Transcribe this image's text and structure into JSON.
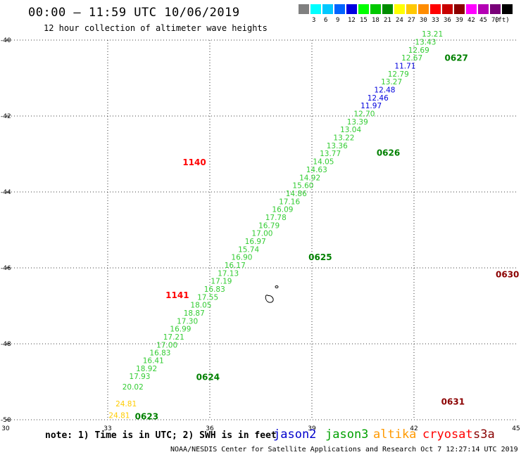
{
  "header": {
    "title": "00:00 – 11:59 UTC 10/06/2019",
    "subtitle": "12 hour collection of altimeter wave heights"
  },
  "colorbar": {
    "unit_label": "(ft)",
    "cells": [
      {
        "color": "#808080",
        "label": ""
      },
      {
        "color": "#00ffff",
        "label": "3"
      },
      {
        "color": "#00c8ff",
        "label": "6"
      },
      {
        "color": "#0064ff",
        "label": "9"
      },
      {
        "color": "#0000e0",
        "label": "12"
      },
      {
        "color": "#00ff00",
        "label": "15"
      },
      {
        "color": "#00c800",
        "label": "18"
      },
      {
        "color": "#008c00",
        "label": "21"
      },
      {
        "color": "#ffff00",
        "label": "24"
      },
      {
        "color": "#ffc800",
        "label": "27"
      },
      {
        "color": "#ff8c00",
        "label": "30"
      },
      {
        "color": "#ff0000",
        "label": "33"
      },
      {
        "color": "#c80000",
        "label": "36"
      },
      {
        "color": "#8c0000",
        "label": "39"
      },
      {
        "color": "#ff00ff",
        "label": "42"
      },
      {
        "color": "#b400b4",
        "label": "45"
      },
      {
        "color": "#780078",
        "label": "70"
      },
      {
        "color": "#000000",
        "label": ""
      }
    ]
  },
  "footer": {
    "note": "note: 1) Time is in UTC; 2) SWH is in feet",
    "legend": [
      {
        "name": "jason2",
        "color": "#0000cc"
      },
      {
        "name": "jason3",
        "color": "#00a000"
      },
      {
        "name": "altika",
        "color": "#ff9900"
      },
      {
        "name": "cryosat",
        "color": "#ff0000"
      },
      {
        "name": "s3a",
        "color": "#880000"
      }
    ],
    "credit": "NOAA/NESDIS Center for Satellite Applications and Research   Oct  7 12:27:14 UTC 2019"
  },
  "chart_data": {
    "type": "scatter",
    "title": "00:00 – 11:59 UTC 10/06/2019",
    "subtitle": "12 hour collection of altimeter wave heights",
    "xlabel": "",
    "ylabel": "",
    "xlim": [
      30,
      45
    ],
    "ylim": [
      -50,
      -40
    ],
    "x_ticks": [
      "30",
      "33",
      "36",
      "39",
      "42",
      "45"
    ],
    "y_ticks": [
      "-40",
      "-42",
      "-44",
      "-46",
      "-48",
      "-50"
    ],
    "grid": "dotted",
    "time_labels": [
      {
        "text": "0627",
        "x": 42.9,
        "y": -40.55,
        "color": "#008000"
      },
      {
        "text": "0626",
        "x": 40.9,
        "y": -43.05,
        "color": "#008000"
      },
      {
        "text": "0625",
        "x": 38.9,
        "y": -45.8,
        "color": "#008000"
      },
      {
        "text": "0624",
        "x": 35.6,
        "y": -48.95,
        "color": "#008000"
      },
      {
        "text": "0623",
        "x": 33.8,
        "y": -49.99,
        "color": "#008000"
      },
      {
        "text": "1140",
        "x": 35.2,
        "y": -43.3,
        "color": "#ff0000"
      },
      {
        "text": "1141",
        "x": 34.7,
        "y": -46.8,
        "color": "#ff0000"
      },
      {
        "text": "0630",
        "x": 44.4,
        "y": -46.25,
        "color": "#8b0000"
      },
      {
        "text": "0631",
        "x": 42.8,
        "y": -49.6,
        "color": "#8b0000"
      }
    ],
    "series": [
      {
        "name": "jason3",
        "tracks": [
          {
            "color": "#33cc33",
            "points": [
              {
                "x": 33.34,
                "y": -49.95,
                "v": "24.81"
              },
              {
                "x": 33.54,
                "y": -49.65,
                "v": "24.81"
              },
              {
                "x": 33.74,
                "y": -49.2,
                "v": "20.02"
              },
              {
                "x": 33.94,
                "y": -48.93,
                "v": "17.93"
              },
              {
                "x": 34.14,
                "y": -48.72,
                "v": "18.92"
              },
              {
                "x": 34.34,
                "y": -48.51,
                "v": "16.41"
              },
              {
                "x": 34.54,
                "y": -48.31,
                "v": "16.83"
              },
              {
                "x": 34.74,
                "y": -48.1,
                "v": "17.00"
              },
              {
                "x": 34.94,
                "y": -47.89,
                "v": "17.21"
              },
              {
                "x": 35.14,
                "y": -47.68,
                "v": "16.99"
              },
              {
                "x": 35.34,
                "y": -47.47,
                "v": "17.30"
              },
              {
                "x": 35.54,
                "y": -47.26,
                "v": "18.87"
              },
              {
                "x": 35.74,
                "y": -47.05,
                "v": "18.05"
              },
              {
                "x": 35.94,
                "y": -46.84,
                "v": "17.55"
              },
              {
                "x": 36.14,
                "y": -46.63,
                "v": "16.83"
              },
              {
                "x": 36.34,
                "y": -46.42,
                "v": "17.19"
              },
              {
                "x": 36.54,
                "y": -46.21,
                "v": "17.13"
              },
              {
                "x": 36.74,
                "y": -46.0,
                "v": "16.17"
              },
              {
                "x": 36.94,
                "y": -45.79,
                "v": "16.90"
              },
              {
                "x": 37.14,
                "y": -45.58,
                "v": "15.74"
              },
              {
                "x": 37.34,
                "y": -45.37,
                "v": "16.97"
              },
              {
                "x": 37.54,
                "y": -45.16,
                "v": "17.00"
              },
              {
                "x": 37.74,
                "y": -44.95,
                "v": "16.79"
              },
              {
                "x": 37.94,
                "y": -44.74,
                "v": "17.78"
              },
              {
                "x": 38.14,
                "y": -44.53,
                "v": "16.09"
              },
              {
                "x": 38.34,
                "y": -44.32,
                "v": "17.16"
              },
              {
                "x": 38.54,
                "y": -44.11,
                "v": "14.86"
              },
              {
                "x": 38.74,
                "y": -43.9,
                "v": "15.60"
              },
              {
                "x": 38.94,
                "y": -43.69,
                "v": "14.92"
              },
              {
                "x": 39.14,
                "y": -43.48,
                "v": "14.63"
              },
              {
                "x": 39.34,
                "y": -43.27,
                "v": "14.05"
              },
              {
                "x": 39.54,
                "y": -43.06,
                "v": "13.77"
              },
              {
                "x": 39.74,
                "y": -42.85,
                "v": "13.36"
              },
              {
                "x": 39.94,
                "y": -42.64,
                "v": "13.22"
              },
              {
                "x": 40.14,
                "y": -42.43,
                "v": "13.04"
              },
              {
                "x": 40.34,
                "y": -42.22,
                "v": "13.39"
              },
              {
                "x": 40.54,
                "y": -42.01,
                "v": "12.70"
              },
              {
                "x": 40.74,
                "y": -41.8,
                "v": "11.97"
              },
              {
                "x": 40.94,
                "y": -41.59,
                "v": "12.46"
              },
              {
                "x": 41.14,
                "y": -41.38,
                "v": "12.48"
              },
              {
                "x": 41.34,
                "y": -41.17,
                "v": "13.27"
              },
              {
                "x": 41.54,
                "y": -40.96,
                "v": "12.79"
              },
              {
                "x": 41.74,
                "y": -40.75,
                "v": "11.71"
              },
              {
                "x": 41.94,
                "y": -40.54,
                "v": "12.67"
              },
              {
                "x": 42.14,
                "y": -40.33,
                "v": "12.69"
              },
              {
                "x": 42.34,
                "y": -40.12,
                "v": "13.43"
              },
              {
                "x": 42.54,
                "y": -39.91,
                "v": "13.21"
              }
            ]
          }
        ]
      }
    ]
  }
}
